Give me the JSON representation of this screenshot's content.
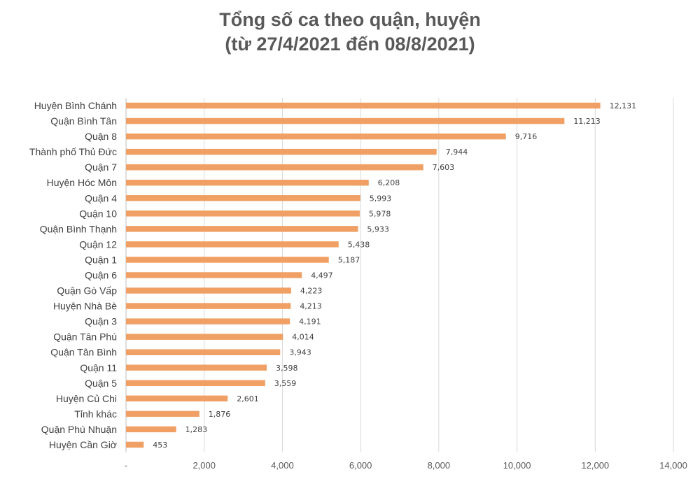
{
  "chart_data": {
    "type": "bar",
    "orientation": "horizontal",
    "title": "Tổng số ca theo quận, huyện",
    "subtitle": "(từ 27/4/2021 đến 08/8/2021)",
    "categories": [
      "Huyện Bình Chánh",
      "Quận Bình Tân",
      "Quận 8",
      "Thành phố Thủ Đức",
      "Quận 7",
      "Huyện Hóc Môn",
      "Quận 4",
      "Quận 10",
      "Quận Bình Thạnh",
      "Quận 12",
      "Quận 1",
      "Quận 6",
      "Quận Gò Vấp",
      "Huyện Nhà Bè",
      "Quận 3",
      "Quận Tân Phú",
      "Quận Tân Bình",
      "Quận 11",
      "Quận 5",
      "Huyện Củ Chi",
      "Tỉnh khác",
      "Quận Phú Nhuận",
      "Huyện Cần Giờ"
    ],
    "values": [
      12131,
      11213,
      9716,
      7944,
      7603,
      6208,
      5993,
      5978,
      5933,
      5438,
      5187,
      4497,
      4223,
      4213,
      4191,
      4014,
      3943,
      3598,
      3559,
      2601,
      1876,
      1283,
      453
    ],
    "value_labels": [
      "12,131",
      "11,213",
      "9,716",
      "7,944",
      "7,603",
      "6,208",
      "5,993",
      "5,978",
      "5,933",
      "5,438",
      "5,187",
      "4,497",
      "4,223",
      "4,213",
      "4,191",
      "4,014",
      "3,943",
      "3,598",
      "3,559",
      "2,601",
      "1,876",
      "1,283",
      "453"
    ],
    "xlim": [
      0,
      14000
    ],
    "x_ticks": [
      0,
      2000,
      4000,
      6000,
      8000,
      10000,
      12000,
      14000
    ],
    "x_tick_labels": [
      "-",
      "2,000",
      "4,000",
      "6,000",
      "8,000",
      "10,000",
      "12,000",
      "14,000"
    ],
    "grid": true,
    "legend": "none",
    "bar_color": "#f0a065"
  }
}
